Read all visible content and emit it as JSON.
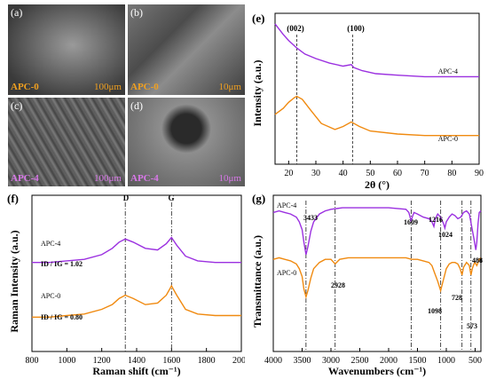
{
  "sem_panels": [
    {
      "tag": "(a)",
      "sample": "APC-0",
      "scale": "100μm",
      "color": "#f0a020"
    },
    {
      "tag": "(b)",
      "sample": "APC-0",
      "scale": "10μm",
      "color": "#f0a020"
    },
    {
      "tag": "(c)",
      "sample": "APC-4",
      "scale": "100μm",
      "color": "#d878e8"
    },
    {
      "tag": "(d)",
      "sample": "APC-4",
      "scale": "10μm",
      "color": "#d878e8"
    }
  ],
  "chart_data": [
    {
      "type": "line",
      "panel": "(e)",
      "xlabel": "2θ (°)",
      "ylabel": "Intensity (a.u.)",
      "xlim": [
        15,
        90
      ],
      "xticks": [
        "20",
        "30",
        "40",
        "50",
        "60",
        "70",
        "80",
        "90"
      ],
      "annotations": [
        "(002)",
        "(100)"
      ],
      "reference_lines_x": [
        23,
        43.5
      ],
      "series": [
        {
          "name": "APC-4",
          "color": "#9b30e0",
          "x": [
            15,
            18,
            20,
            23,
            26,
            30,
            35,
            40,
            43,
            44,
            47,
            52,
            60,
            70,
            80,
            90
          ],
          "y": [
            0.93,
            0.86,
            0.82,
            0.77,
            0.73,
            0.7,
            0.67,
            0.65,
            0.66,
            0.64,
            0.62,
            0.6,
            0.59,
            0.58,
            0.58,
            0.58
          ]
        },
        {
          "name": "APC-0",
          "color": "#f08a10",
          "x": [
            15,
            18,
            20,
            22,
            23,
            25,
            28,
            32,
            37,
            40,
            43,
            46,
            50,
            60,
            70,
            80,
            90
          ],
          "y": [
            0.33,
            0.37,
            0.41,
            0.44,
            0.45,
            0.43,
            0.36,
            0.27,
            0.23,
            0.25,
            0.28,
            0.25,
            0.22,
            0.2,
            0.19,
            0.19,
            0.19
          ]
        }
      ]
    },
    {
      "type": "line",
      "panel": "(f)",
      "xlabel": "Raman shift (cm⁻¹)",
      "ylabel": "Raman Intensity (a.u.)",
      "xlim": [
        800,
        2000
      ],
      "xticks": [
        "800",
        "1000",
        "1200",
        "1400",
        "1600",
        "1800",
        "2000"
      ],
      "annotations": [
        "D",
        "G"
      ],
      "reference_lines_x": [
        1335,
        1600
      ],
      "series": [
        {
          "name": "APC-4",
          "color": "#9b30e0",
          "ratio_label": "ID / IG = 1.02",
          "x": [
            800,
            900,
            1000,
            1100,
            1200,
            1260,
            1300,
            1335,
            1380,
            1450,
            1520,
            1570,
            1600,
            1630,
            1680,
            1750,
            1850,
            1950,
            2000
          ],
          "y": [
            0.57,
            0.57,
            0.58,
            0.59,
            0.62,
            0.66,
            0.7,
            0.72,
            0.7,
            0.66,
            0.65,
            0.69,
            0.73,
            0.68,
            0.61,
            0.58,
            0.57,
            0.57,
            0.57
          ]
        },
        {
          "name": "APC-0",
          "color": "#f08a10",
          "ratio_label": "ID / IG = 0.80",
          "x": [
            800,
            900,
            1000,
            1100,
            1200,
            1260,
            1300,
            1335,
            1380,
            1450,
            1520,
            1570,
            1600,
            1630,
            1680,
            1750,
            1850,
            1950,
            2000
          ],
          "y": [
            0.22,
            0.22,
            0.23,
            0.24,
            0.27,
            0.3,
            0.34,
            0.36,
            0.34,
            0.3,
            0.31,
            0.36,
            0.42,
            0.36,
            0.27,
            0.24,
            0.23,
            0.23,
            0.23
          ]
        }
      ]
    },
    {
      "type": "line",
      "panel": "(g)",
      "xlabel": "Wavenumbers (cm⁻¹)",
      "ylabel": "Transmittance (a.u.)",
      "xlim": [
        4000,
        400
      ],
      "xticks": [
        "4000",
        "3500",
        "3000",
        "2500",
        "2000",
        "1500",
        "1000",
        "500"
      ],
      "annotations": [
        "3433",
        "2928",
        "1609",
        "1216",
        "1024",
        "1098",
        "728",
        "573",
        "488"
      ],
      "reference_lines_x": [
        3433,
        2928,
        1609,
        1098,
        728,
        573
      ],
      "series": [
        {
          "name": "APC-4",
          "color": "#9b30e0",
          "x": [
            4000,
            3900,
            3800,
            3700,
            3600,
            3550,
            3500,
            3470,
            3433,
            3400,
            3350,
            3300,
            3200,
            3100,
            3000,
            2800,
            2500,
            2000,
            1700,
            1650,
            1620,
            1609,
            1590,
            1560,
            1500,
            1400,
            1300,
            1250,
            1216,
            1190,
            1150,
            1100,
            1050,
            1024,
            1000,
            950,
            900,
            850,
            800,
            750,
            700,
            650,
            600,
            560,
            520,
            488,
            470,
            450,
            430,
            400
          ],
          "y": [
            0.89,
            0.9,
            0.89,
            0.88,
            0.86,
            0.83,
            0.78,
            0.7,
            0.62,
            0.67,
            0.77,
            0.83,
            0.88,
            0.9,
            0.91,
            0.92,
            0.92,
            0.92,
            0.91,
            0.89,
            0.85,
            0.83,
            0.86,
            0.89,
            0.88,
            0.86,
            0.85,
            0.83,
            0.8,
            0.85,
            0.88,
            0.86,
            0.82,
            0.79,
            0.83,
            0.86,
            0.88,
            0.87,
            0.85,
            0.86,
            0.89,
            0.9,
            0.88,
            0.8,
            0.72,
            0.65,
            0.7,
            0.82,
            0.89,
            0.9
          ]
        },
        {
          "name": "APC-0",
          "color": "#f08a10",
          "x": [
            4000,
            3900,
            3800,
            3700,
            3600,
            3550,
            3500,
            3470,
            3433,
            3400,
            3350,
            3300,
            3200,
            3100,
            3000,
            2928,
            2850,
            2700,
            2500,
            2000,
            1700,
            1600,
            1500,
            1400,
            1300,
            1250,
            1200,
            1150,
            1098,
            1050,
            1000,
            950,
            900,
            850,
            800,
            760,
            728,
            700,
            650,
            600,
            573,
            550,
            520,
            500,
            488,
            470,
            450,
            430,
            400
          ],
          "y": [
            0.59,
            0.6,
            0.59,
            0.58,
            0.56,
            0.53,
            0.48,
            0.4,
            0.35,
            0.39,
            0.47,
            0.53,
            0.57,
            0.59,
            0.59,
            0.56,
            0.59,
            0.6,
            0.6,
            0.6,
            0.6,
            0.59,
            0.59,
            0.58,
            0.57,
            0.55,
            0.5,
            0.45,
            0.39,
            0.46,
            0.53,
            0.56,
            0.57,
            0.57,
            0.56,
            0.53,
            0.49,
            0.54,
            0.57,
            0.55,
            0.49,
            0.53,
            0.56,
            0.57,
            0.56,
            0.55,
            0.57,
            0.59,
            0.6
          ]
        }
      ]
    }
  ]
}
